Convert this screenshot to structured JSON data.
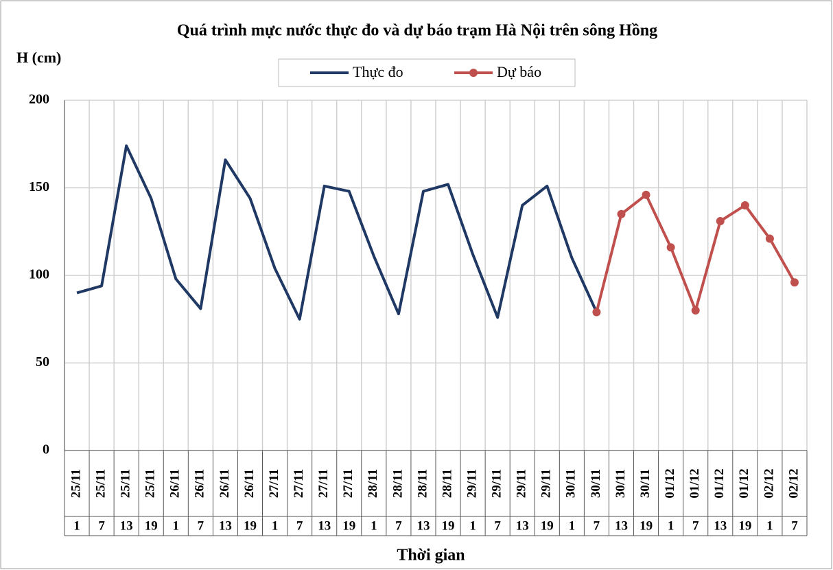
{
  "chart_data": {
    "type": "line",
    "title": "Quá trình  mực nước thực đo và dự báo trạm Hà Nội trên sông Hồng",
    "y_label": "H (cm)",
    "x_label": "Thời gian",
    "categories": [
      "25/11",
      "25/11",
      "25/11",
      "25/11",
      "26/11",
      "26/11",
      "26/11",
      "26/11",
      "27/11",
      "27/11",
      "27/11",
      "27/11",
      "28/11",
      "28/11",
      "28/11",
      "28/11",
      "29/11",
      "29/11",
      "29/11",
      "29/11",
      "30/11",
      "30/11",
      "30/11",
      "30/11",
      "01/12",
      "01/12",
      "01/12",
      "01/12",
      "02/12",
      "02/12"
    ],
    "hours": [
      "1",
      "7",
      "13",
      "19",
      "1",
      "7",
      "13",
      "19",
      "1",
      "7",
      "13",
      "19",
      "1",
      "7",
      "13",
      "19",
      "1",
      "7",
      "13",
      "19",
      "1",
      "7",
      "13",
      "19",
      "1",
      "7",
      "13",
      "19",
      "1",
      "7"
    ],
    "series": [
      {
        "name": "Thực đo",
        "color": "#1f3864",
        "markers": false,
        "values": [
          90,
          94,
          174,
          144,
          98,
          81,
          166,
          144,
          104,
          75,
          151,
          148,
          111,
          78,
          148,
          152,
          112,
          76,
          140,
          151,
          110,
          79,
          null,
          null,
          null,
          null,
          null,
          null,
          null,
          null
        ]
      },
      {
        "name": "Dự báo",
        "color": "#c0504d",
        "markers": true,
        "values": [
          null,
          null,
          null,
          null,
          null,
          null,
          null,
          null,
          null,
          null,
          null,
          null,
          null,
          null,
          null,
          null,
          null,
          null,
          null,
          null,
          null,
          79,
          135,
          146,
          116,
          80,
          131,
          140,
          121,
          96
        ]
      }
    ],
    "ylim": [
      0,
      200
    ],
    "yticks": [
      0,
      50,
      100,
      150,
      200
    ],
    "grid": true
  }
}
